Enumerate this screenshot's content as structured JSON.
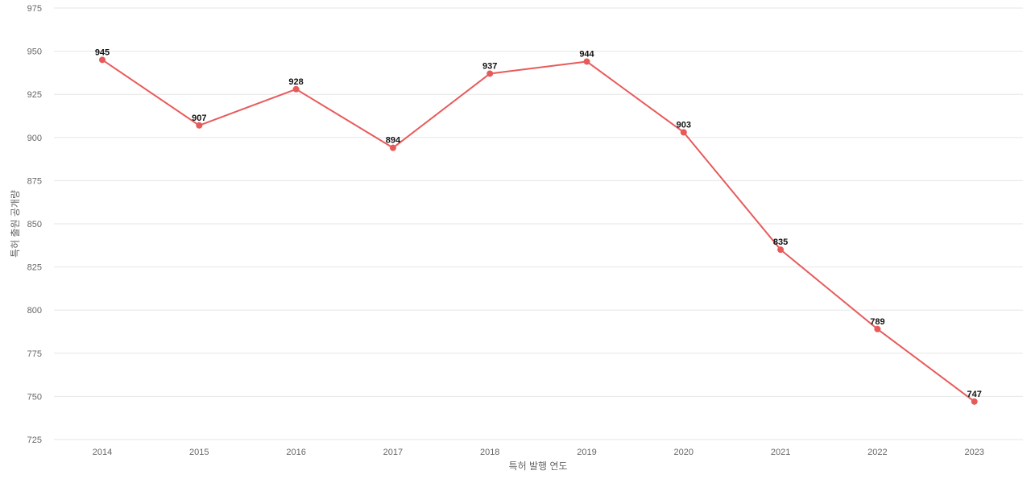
{
  "chart_data": {
    "type": "line",
    "title": "",
    "xlabel": "특허 발행 연도",
    "ylabel": "특허 출원 공개량",
    "x": [
      "2014",
      "2015",
      "2016",
      "2017",
      "2018",
      "2019",
      "2020",
      "2021",
      "2022",
      "2023"
    ],
    "series": [
      {
        "values": [
          945,
          907,
          928,
          894,
          937,
          944,
          903,
          835,
          789,
          747
        ],
        "color": "#e85a5a"
      }
    ],
    "ylim": [
      725,
      975
    ],
    "yticks": [
      975,
      950,
      925,
      900,
      875,
      850,
      825,
      800,
      775,
      750,
      725
    ],
    "grid": true,
    "data_labels": true,
    "legend": "none"
  }
}
